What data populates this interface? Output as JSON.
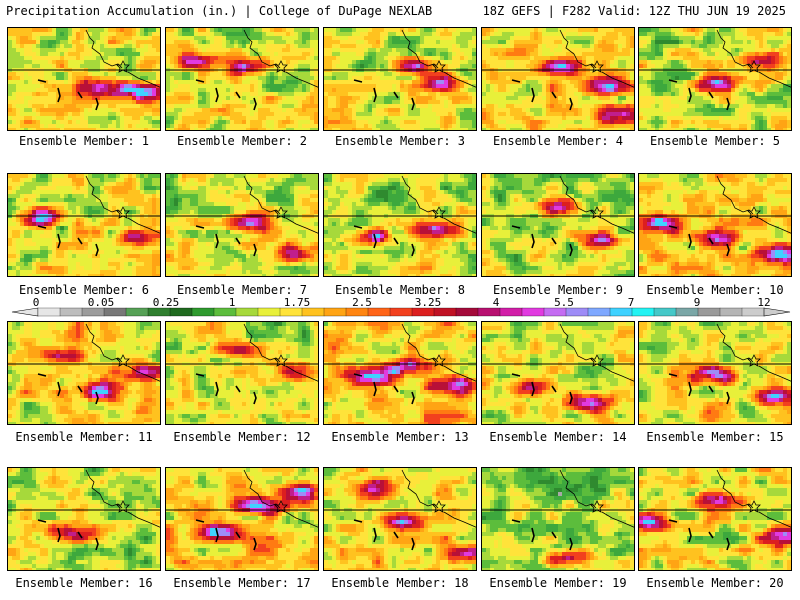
{
  "header": {
    "left": "Precipitation Accumulation (in.) | College of DuPage NEXLAB",
    "right": "18Z GEFS | F282 Valid: 12Z THU JUN 19 2025"
  },
  "colorbar": {
    "tick_labels": [
      "0",
      "0.05",
      "0.25",
      "1",
      "1.75",
      "2.5",
      "3.25",
      "4",
      "5.5",
      "7",
      "9",
      "12"
    ],
    "colors": [
      "#e6e6e6",
      "#bdbdbd",
      "#9c9c9c",
      "#787878",
      "#56a156",
      "#2f7f2f",
      "#1f6a1f",
      "#2e9a2e",
      "#5cbd3c",
      "#a6d93b",
      "#e8f03a",
      "#ffe33a",
      "#ffc21f",
      "#ffa414",
      "#ff8511",
      "#ff6418",
      "#f2401e",
      "#dc1f1f",
      "#c01225",
      "#a40a3a",
      "#b81070",
      "#d21ea8",
      "#e13ae0",
      "#c46cf2",
      "#9e8cf7",
      "#7fa8ff",
      "#3fd2ff",
      "#23f3f3",
      "#45c8c8",
      "#7aa6a6",
      "#9a9a9a",
      "#b5b5b5",
      "#cccccc"
    ]
  },
  "panels": [
    {
      "label": "Ensemble Member: 1",
      "seed": 11,
      "hot": [
        [
          0.85,
          0.6
        ],
        [
          0.6,
          0.55
        ]
      ],
      "dry": 0.3
    },
    {
      "label": "Ensemble Member: 2",
      "seed": 23,
      "hot": [
        [
          0.5,
          0.35
        ],
        [
          0.2,
          0.3
        ]
      ],
      "dry": 0.5
    },
    {
      "label": "Ensemble Member: 3",
      "seed": 37,
      "hot": [
        [
          0.75,
          0.5
        ],
        [
          0.6,
          0.35
        ]
      ],
      "dry": 0.45
    },
    {
      "label": "Ensemble Member: 4",
      "seed": 41,
      "hot": [
        [
          0.8,
          0.55
        ],
        [
          0.5,
          0.35
        ],
        [
          0.9,
          0.8
        ]
      ],
      "dry": 0.25
    },
    {
      "label": "Ensemble Member: 5",
      "seed": 53,
      "hot": [
        [
          0.5,
          0.5
        ],
        [
          0.75,
          0.3
        ]
      ],
      "dry": 0.5
    },
    {
      "label": "Ensemble Member: 6",
      "seed": 67,
      "hot": [
        [
          0.85,
          0.6
        ],
        [
          0.2,
          0.4
        ]
      ],
      "dry": 0.4
    },
    {
      "label": "Ensemble Member: 7",
      "seed": 71,
      "hot": [
        [
          0.85,
          0.75
        ],
        [
          0.55,
          0.45
        ]
      ],
      "dry": 0.45
    },
    {
      "label": "Ensemble Member: 8",
      "seed": 83,
      "hot": [
        [
          0.3,
          0.6
        ],
        [
          0.7,
          0.5
        ]
      ],
      "dry": 0.5
    },
    {
      "label": "Ensemble Member: 9",
      "seed": 97,
      "hot": [
        [
          0.5,
          0.3
        ],
        [
          0.75,
          0.6
        ]
      ],
      "dry": 0.55
    },
    {
      "label": "Ensemble Member: 10",
      "seed": 101,
      "hot": [
        [
          0.15,
          0.45
        ],
        [
          0.5,
          0.6
        ],
        [
          0.9,
          0.75
        ]
      ],
      "dry": 0.15
    },
    {
      "label": "Ensemble Member: 11",
      "seed": 113,
      "hot": [
        [
          0.6,
          0.65
        ],
        [
          0.3,
          0.3
        ],
        [
          0.85,
          0.45
        ]
      ],
      "dry": 0.3
    },
    {
      "label": "Ensemble Member: 12",
      "seed": 127,
      "hot": [
        [
          0.45,
          0.25
        ],
        [
          0.8,
          0.45
        ]
      ],
      "dry": 0.55
    },
    {
      "label": "Ensemble Member: 13",
      "seed": 131,
      "hot": [
        [
          0.8,
          0.6
        ],
        [
          0.3,
          0.5
        ],
        [
          0.55,
          0.4
        ]
      ],
      "dry": 0.15
    },
    {
      "label": "Ensemble Member: 14",
      "seed": 139,
      "hot": [
        [
          0.7,
          0.75
        ],
        [
          0.3,
          0.6
        ]
      ],
      "dry": 0.45
    },
    {
      "label": "Ensemble Member: 15",
      "seed": 151,
      "hot": [
        [
          0.85,
          0.7
        ],
        [
          0.5,
          0.5
        ]
      ],
      "dry": 0.35
    },
    {
      "label": "Ensemble Member: 16",
      "seed": 163,
      "hot": [
        [
          0.4,
          0.6
        ]
      ],
      "dry": 0.5
    },
    {
      "label": "Ensemble Member: 17",
      "seed": 173,
      "hot": [
        [
          0.85,
          0.2
        ],
        [
          0.6,
          0.35
        ],
        [
          0.3,
          0.6
        ]
      ],
      "dry": 0.2
    },
    {
      "label": "Ensemble Member: 18",
      "seed": 181,
      "hot": [
        [
          0.9,
          0.8
        ],
        [
          0.5,
          0.5
        ],
        [
          0.3,
          0.2
        ]
      ],
      "dry": 0.25
    },
    {
      "label": "Ensemble Member: 19",
      "seed": 191,
      "hot": [
        [
          0.55,
          0.85
        ]
      ],
      "dry": 0.7
    },
    {
      "label": "Ensemble Member: 20",
      "seed": 199,
      "hot": [
        [
          0.05,
          0.5
        ],
        [
          0.5,
          0.3
        ],
        [
          0.9,
          0.65
        ]
      ],
      "dry": 0.35
    }
  ]
}
